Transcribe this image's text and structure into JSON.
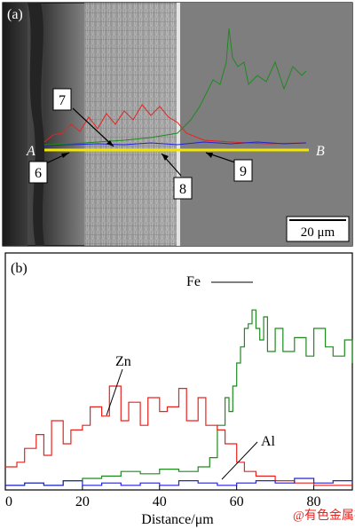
{
  "panel_a": {
    "label": "(a)",
    "scale_bar": "20 μm",
    "line_start_label": "A",
    "line_end_label": "B",
    "callouts": [
      "7",
      "6",
      "8",
      "9"
    ]
  },
  "panel_b": {
    "label": "(b)"
  },
  "watermark": "@有色金属在线",
  "colors": {
    "Fe": "#1f8a1f",
    "Zn": "#e8231e",
    "Al": "#2323d6",
    "scan_line": "#f2e600"
  },
  "chart_data": {
    "type": "line",
    "xlabel": "Distance/μm",
    "ylabel": "",
    "xlim": [
      0,
      90
    ],
    "ylim": [
      0,
      100
    ],
    "x_ticks": [
      0,
      20,
      40,
      60,
      80
    ],
    "grid": false,
    "legend": "labels placed on curves",
    "series": [
      {
        "name": "Fe",
        "color": "#1f8a1f",
        "x": [
          0,
          5,
          10,
          15,
          20,
          25,
          30,
          35,
          40,
          45,
          50,
          53,
          55,
          57,
          58,
          59,
          60,
          61,
          62,
          63,
          64,
          65,
          66,
          67,
          68,
          70,
          72,
          75,
          78,
          80,
          83,
          85,
          88,
          90
        ],
        "y": [
          2,
          3,
          2,
          4,
          5,
          6,
          8,
          7,
          9,
          8,
          10,
          14,
          28,
          40,
          34,
          45,
          55,
          62,
          70,
          72,
          78,
          70,
          65,
          75,
          60,
          70,
          60,
          66,
          58,
          70,
          62,
          58,
          65,
          55
        ]
      },
      {
        "name": "Zn",
        "color": "#e8231e",
        "x": [
          0,
          3,
          5,
          8,
          10,
          12,
          15,
          17,
          20,
          22,
          25,
          27,
          30,
          32,
          35,
          37,
          40,
          42,
          45,
          47,
          50,
          52,
          55,
          57,
          60,
          62,
          65,
          70,
          75,
          80,
          85,
          90
        ],
        "y": [
          10,
          12,
          18,
          24,
          15,
          30,
          20,
          26,
          28,
          36,
          32,
          45,
          30,
          38,
          28,
          40,
          34,
          36,
          44,
          30,
          40,
          28,
          26,
          20,
          12,
          8,
          6,
          4,
          3,
          2,
          2,
          2
        ]
      },
      {
        "name": "Al",
        "color": "#2323d6",
        "x": [
          0,
          5,
          10,
          15,
          20,
          25,
          30,
          35,
          40,
          45,
          50,
          55,
          60,
          65,
          70,
          75,
          80,
          85,
          90
        ],
        "y": [
          2,
          3,
          2,
          4,
          2,
          3,
          2,
          3,
          2,
          4,
          3,
          2,
          3,
          4,
          3,
          5,
          3,
          4,
          3
        ]
      }
    ],
    "series_labels": [
      "Fe",
      "Zn",
      "Al"
    ]
  }
}
